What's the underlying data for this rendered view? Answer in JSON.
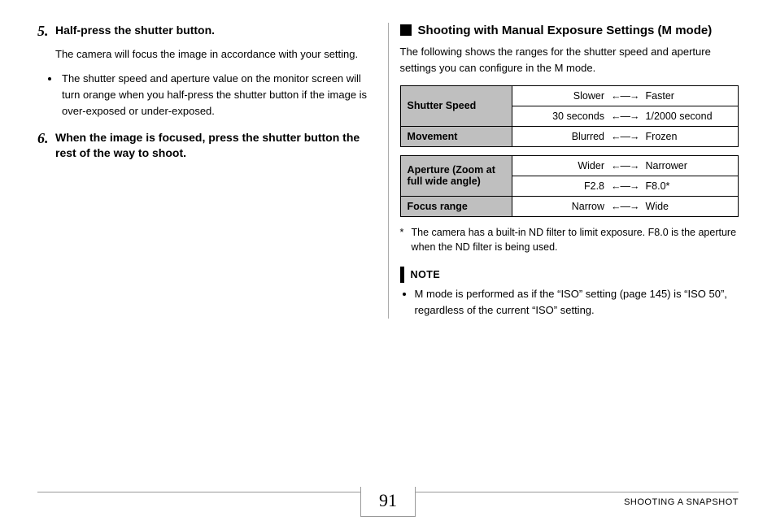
{
  "left": {
    "step5": {
      "num": "5.",
      "title": "Half-press the shutter button.",
      "desc": "The camera will focus the image in accordance with your setting.",
      "bullet": "The shutter speed and aperture value on the monitor screen will turn orange when you half-press the shutter button if the image is over-exposed or under-exposed."
    },
    "step6": {
      "num": "6.",
      "title": "When the image is focused, press the shutter button the rest of the way to shoot."
    }
  },
  "right": {
    "heading": "Shooting with Manual Exposure Settings (M mode)",
    "desc": "The following shows the ranges for the shutter speed and aperture settings you can configure in the M mode.",
    "arrow_glyph": "←—→",
    "table1": {
      "row1_label": "Shutter Speed",
      "row1a_l": "Slower",
      "row1a_r": "Faster",
      "row1b_l": "30 seconds",
      "row1b_r": "1/2000 second",
      "row2_label": "Movement",
      "row2_l": "Blurred",
      "row2_r": "Frozen"
    },
    "table2": {
      "row1_label": "Aperture (Zoom at full wide angle)",
      "row1a_l": "Wider",
      "row1a_r": "Narrower",
      "row1b_l": "F2.8",
      "row1b_r": "F8.0*",
      "row2_label": "Focus range",
      "row2_l": "Narrow",
      "row2_r": "Wide"
    },
    "footnote_star": "*",
    "footnote": "The camera has a built-in ND filter to limit exposure. F8.0 is the aperture when the ND filter is being used.",
    "note_label": "NOTE",
    "note_bullet": "M mode is performed as if the “ISO” setting (page 145) is “ISO 50”, regardless of the current “ISO” setting."
  },
  "footer": {
    "page": "91",
    "section": "SHOOTING A SNAPSHOT"
  },
  "colors": {
    "header_cell_bg": "#bfbfbf",
    "text": "#000000",
    "rule": "#999999",
    "page_bg": "#ffffff"
  }
}
